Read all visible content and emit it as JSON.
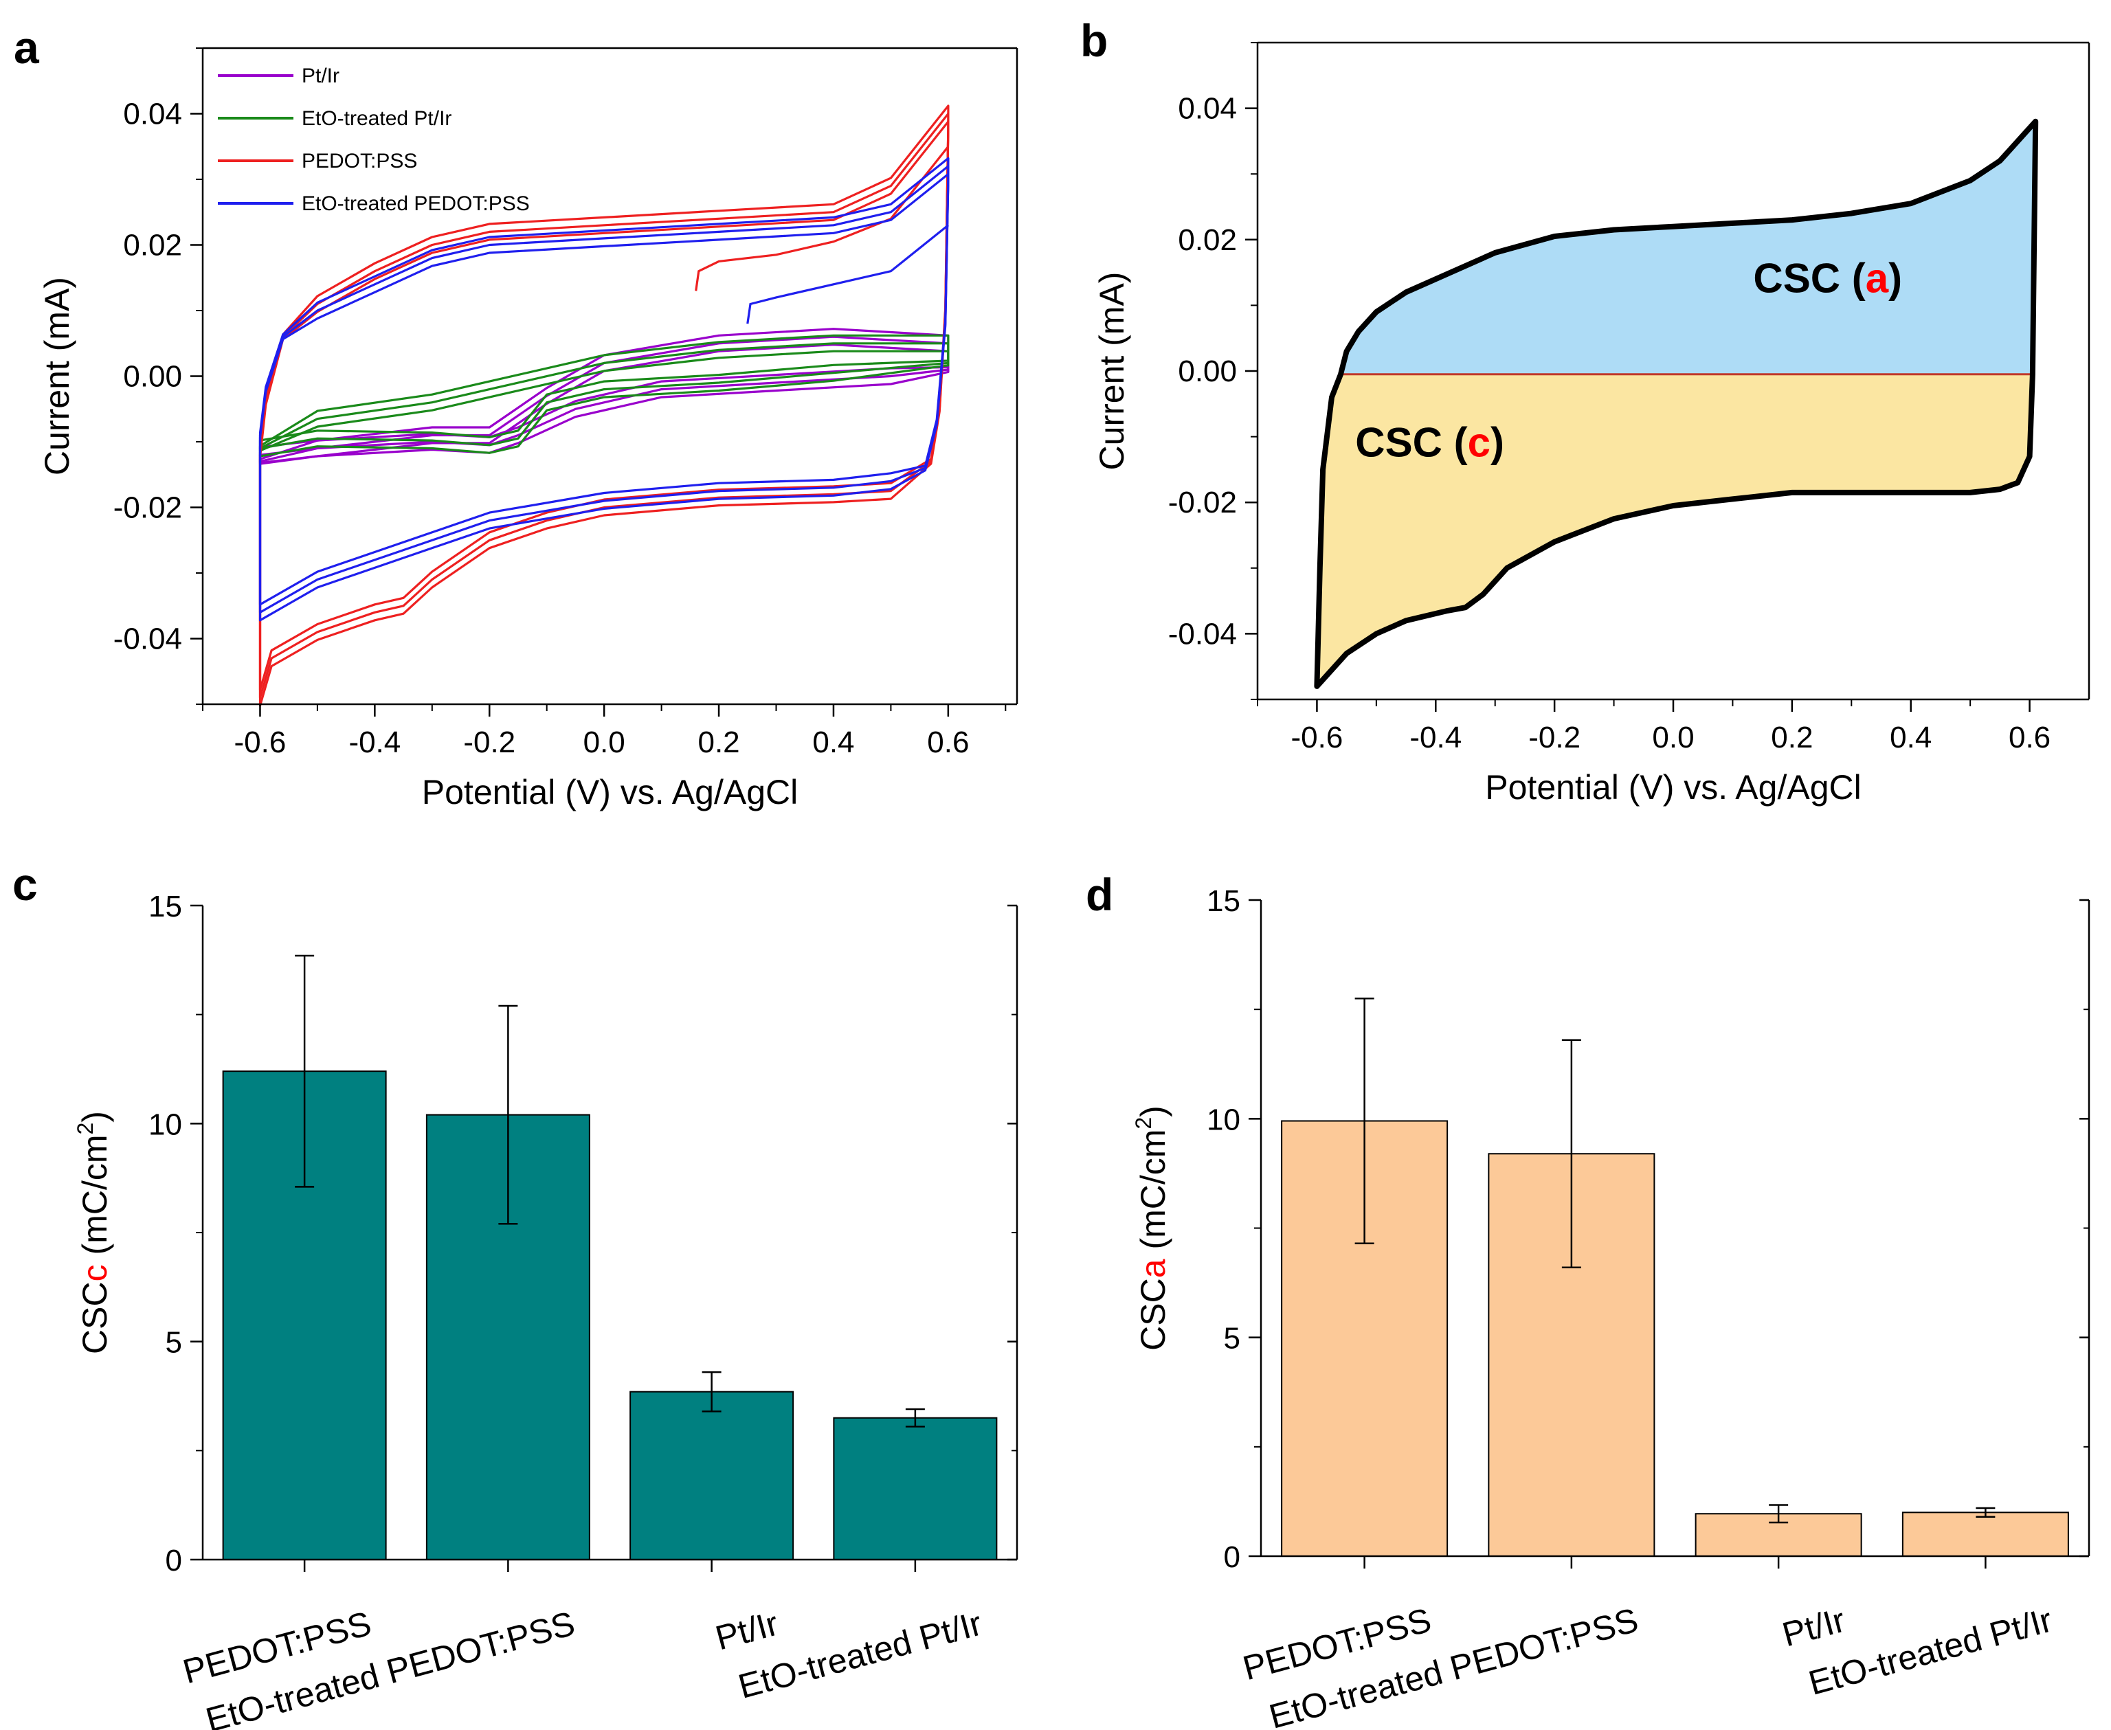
{
  "panels": {
    "a": "a",
    "b": "b",
    "c": "c",
    "d": "d"
  },
  "chart_data": [
    {
      "panel": "a",
      "type": "line",
      "xlabel": "Potential (V) vs. Ag/AgCl",
      "ylabel": "Current (mA)",
      "xlim": [
        -0.7,
        0.72
      ],
      "ylim": [
        -0.05,
        0.05
      ],
      "xticks": [
        -0.6,
        -0.4,
        -0.2,
        0.0,
        0.2,
        0.4,
        0.6
      ],
      "xtick_labels": [
        "-0.6",
        "-0.4",
        "-0.2",
        "0.0",
        "0.2",
        "0.4",
        "0.6"
      ],
      "yticks": [
        -0.04,
        -0.02,
        0.0,
        0.02,
        0.04
      ],
      "ytick_labels": [
        "-0.04",
        "-0.02",
        "0.00",
        "0.02",
        "0.04"
      ],
      "legend_position": "top-left",
      "series": [
        {
          "name": "Pt/Ir",
          "color": "#9900cc",
          "anodic": [
            [
              -0.6,
              -0.013
            ],
            [
              -0.5,
              -0.011
            ],
            [
              -0.3,
              -0.009
            ],
            [
              -0.2,
              -0.009
            ],
            [
              -0.1,
              -0.003
            ],
            [
              0.0,
              0.002
            ],
            [
              0.2,
              0.005
            ],
            [
              0.4,
              0.006
            ],
            [
              0.5,
              0.0055
            ],
            [
              0.6,
              0.005
            ]
          ],
          "cathodic": [
            [
              0.6,
              0.001
            ],
            [
              0.5,
              0.0
            ],
            [
              0.3,
              -0.001
            ],
            [
              0.1,
              -0.002
            ],
            [
              -0.05,
              -0.005
            ],
            [
              -0.15,
              -0.009
            ],
            [
              -0.2,
              -0.0105
            ],
            [
              -0.3,
              -0.01
            ],
            [
              -0.5,
              -0.011
            ],
            [
              -0.6,
              -0.012
            ]
          ]
        },
        {
          "name": "EtO-treated Pt/Ir",
          "color": "#1a8a1a",
          "anodic": [
            [
              -0.6,
              -0.011
            ],
            [
              -0.5,
              -0.0065
            ],
            [
              -0.3,
              -0.004
            ],
            [
              -0.2,
              -0.002
            ],
            [
              0.0,
              0.002
            ],
            [
              0.2,
              0.004
            ],
            [
              0.4,
              0.005
            ],
            [
              0.6,
              0.005
            ]
          ],
          "cathodic": [
            [
              0.6,
              0.002
            ],
            [
              0.4,
              0.0005
            ],
            [
              0.2,
              -0.001
            ],
            [
              0.0,
              -0.002
            ],
            [
              -0.1,
              -0.004
            ],
            [
              -0.15,
              -0.0095
            ],
            [
              -0.2,
              -0.0105
            ],
            [
              -0.3,
              -0.0098
            ],
            [
              -0.5,
              -0.0095
            ],
            [
              -0.6,
              -0.011
            ]
          ]
        },
        {
          "name": "PEDOT:PSS",
          "color": "#ee2020",
          "anodic": [
            [
              -0.6,
              -0.012
            ],
            [
              -0.59,
              -0.004
            ],
            [
              -0.56,
              0.006
            ],
            [
              -0.5,
              0.011
            ],
            [
              -0.4,
              0.016
            ],
            [
              -0.3,
              0.02
            ],
            [
              -0.2,
              0.022
            ],
            [
              0.0,
              0.023
            ],
            [
              0.2,
              0.024
            ],
            [
              0.4,
              0.025
            ],
            [
              0.5,
              0.029
            ],
            [
              0.6,
              0.04
            ]
          ],
          "cathodic": [
            [
              0.6,
              0.038
            ],
            [
              0.595,
              0.01
            ],
            [
              0.585,
              -0.005
            ],
            [
              0.57,
              -0.013
            ],
            [
              0.5,
              -0.0175
            ],
            [
              0.4,
              -0.018
            ],
            [
              0.2,
              -0.0185
            ],
            [
              0.0,
              -0.02
            ],
            [
              -0.1,
              -0.022
            ],
            [
              -0.2,
              -0.025
            ],
            [
              -0.3,
              -0.031
            ],
            [
              -0.35,
              -0.035
            ],
            [
              -0.4,
              -0.036
            ],
            [
              -0.5,
              -0.039
            ],
            [
              -0.58,
              -0.043
            ],
            [
              -0.6,
              -0.049
            ]
          ],
          "first_scan": [
            [
              0.16,
              0.013
            ],
            [
              0.165,
              0.016
            ],
            [
              0.2,
              0.0175
            ],
            [
              0.3,
              0.0185
            ],
            [
              0.4,
              0.0205
            ],
            [
              0.5,
              0.024
            ],
            [
              0.6,
              0.035
            ]
          ]
        },
        {
          "name": "EtO-treated PEDOT:PSS",
          "color": "#1f1fee",
          "anodic": [
            [
              -0.6,
              -0.009
            ],
            [
              -0.59,
              -0.002
            ],
            [
              -0.56,
              0.006
            ],
            [
              -0.5,
              0.01
            ],
            [
              -0.4,
              0.014
            ],
            [
              -0.3,
              0.018
            ],
            [
              -0.2,
              0.02
            ],
            [
              0.0,
              0.021
            ],
            [
              0.2,
              0.022
            ],
            [
              0.4,
              0.023
            ],
            [
              0.5,
              0.025
            ],
            [
              0.6,
              0.032
            ]
          ],
          "cathodic": [
            [
              0.6,
              0.03
            ],
            [
              0.595,
              0.008
            ],
            [
              0.58,
              -0.007
            ],
            [
              0.56,
              -0.014
            ],
            [
              0.5,
              -0.016
            ],
            [
              0.4,
              -0.017
            ],
            [
              0.2,
              -0.0175
            ],
            [
              0.0,
              -0.019
            ],
            [
              -0.2,
              -0.022
            ],
            [
              -0.35,
              -0.0265
            ],
            [
              -0.5,
              -0.031
            ],
            [
              -0.6,
              -0.036
            ]
          ],
          "first_scan": [
            [
              0.25,
              0.008
            ],
            [
              0.255,
              0.011
            ],
            [
              0.3,
              0.012
            ],
            [
              0.4,
              0.014
            ],
            [
              0.5,
              0.016
            ],
            [
              0.6,
              0.023
            ]
          ]
        }
      ]
    },
    {
      "panel": "b",
      "type": "area",
      "xlabel": "Potential (V) vs. Ag/AgCl",
      "ylabel": "Current (mA)",
      "xlim": [
        -0.7,
        0.7
      ],
      "ylim": [
        -0.05,
        0.05
      ],
      "xticks": [
        -0.6,
        -0.4,
        -0.2,
        0.0,
        0.2,
        0.4,
        0.6
      ],
      "xtick_labels": [
        "-0.6",
        "-0.4",
        "-0.2",
        "0.0",
        "0.2",
        "0.4",
        "0.6"
      ],
      "yticks": [
        -0.04,
        -0.02,
        0.0,
        0.02,
        0.04
      ],
      "ytick_labels": [
        "-0.04",
        "-0.02",
        "0.00",
        "0.02",
        "0.04"
      ],
      "baseline": -0.0005,
      "anodic_fill": "#aedcf6",
      "cathodic_fill": "#fbe6a2",
      "baseline_color": "#c0392b",
      "curve_color": "#000000",
      "annotations": [
        {
          "prefix": "CSC (",
          "letter": "a",
          "suffix": ")",
          "x": 0.26,
          "y": 0.012
        },
        {
          "prefix": "CSC (",
          "letter": "c",
          "suffix": ")",
          "x": -0.41,
          "y": -0.013
        }
      ],
      "curve_upper": [
        [
          -0.56,
          -0.0005
        ],
        [
          -0.55,
          0.003
        ],
        [
          -0.53,
          0.006
        ],
        [
          -0.5,
          0.009
        ],
        [
          -0.45,
          0.012
        ],
        [
          -0.4,
          0.014
        ],
        [
          -0.3,
          0.018
        ],
        [
          -0.2,
          0.0205
        ],
        [
          -0.1,
          0.0215
        ],
        [
          0.0,
          0.022
        ],
        [
          0.1,
          0.0225
        ],
        [
          0.2,
          0.023
        ],
        [
          0.3,
          0.024
        ],
        [
          0.4,
          0.0255
        ],
        [
          0.5,
          0.029
        ],
        [
          0.55,
          0.032
        ],
        [
          0.61,
          0.038
        ]
      ],
      "curve_right": [
        [
          0.61,
          0.038
        ],
        [
          0.605,
          -0.0005
        ]
      ],
      "curve_lower": [
        [
          0.605,
          -0.0005
        ],
        [
          0.6,
          -0.013
        ],
        [
          0.58,
          -0.017
        ],
        [
          0.55,
          -0.018
        ],
        [
          0.5,
          -0.0185
        ],
        [
          0.4,
          -0.0185
        ],
        [
          0.3,
          -0.0185
        ],
        [
          0.2,
          -0.0185
        ],
        [
          0.1,
          -0.0195
        ],
        [
          0.0,
          -0.0205
        ],
        [
          -0.1,
          -0.0225
        ],
        [
          -0.2,
          -0.026
        ],
        [
          -0.28,
          -0.03
        ],
        [
          -0.32,
          -0.034
        ],
        [
          -0.35,
          -0.036
        ],
        [
          -0.38,
          -0.0365
        ],
        [
          -0.45,
          -0.038
        ],
        [
          -0.5,
          -0.04
        ],
        [
          -0.55,
          -0.043
        ],
        [
          -0.6,
          -0.048
        ]
      ],
      "curve_left": [
        [
          -0.6,
          -0.048
        ],
        [
          -0.595,
          -0.03
        ],
        [
          -0.59,
          -0.015
        ],
        [
          -0.575,
          -0.004
        ],
        [
          -0.56,
          -0.0005
        ]
      ]
    },
    {
      "panel": "c",
      "type": "bar",
      "ylabel_prefix": "CSC",
      "ylabel_sub": "c",
      "ylabel_suffix": " (mC/cm",
      "ylabel_sup": "2",
      "ylabel_close": ")",
      "ylim": [
        0,
        15
      ],
      "yticks": [
        0,
        5,
        10,
        15
      ],
      "ytick_labels": [
        "0",
        "5",
        "10",
        "15"
      ],
      "bar_color": "#008080",
      "categories": [
        "PEDOT:PSS",
        "EtO-treated PEDOT:PSS",
        "Pt/Ir",
        "EtO-treated Pt/Ir"
      ],
      "values": [
        11.2,
        10.2,
        3.85,
        3.25
      ],
      "errors": [
        2.65,
        2.5,
        0.45,
        0.2
      ]
    },
    {
      "panel": "d",
      "type": "bar",
      "ylabel_prefix": "CSC",
      "ylabel_sub": "a",
      "ylabel_suffix": " (mC/cm",
      "ylabel_sup": "2",
      "ylabel_close": ")",
      "ylim": [
        0,
        15
      ],
      "yticks": [
        0,
        5,
        10,
        15
      ],
      "ytick_labels": [
        "0",
        "5",
        "10",
        "15"
      ],
      "bar_color": "#fcc998",
      "categories": [
        "PEDOT:PSS",
        "EtO-treated PEDOT:PSS",
        "Pt/Ir",
        "EtO-treated Pt/Ir"
      ],
      "values": [
        9.95,
        9.2,
        0.97,
        1.0
      ],
      "errors": [
        2.8,
        2.6,
        0.2,
        0.1
      ]
    }
  ]
}
